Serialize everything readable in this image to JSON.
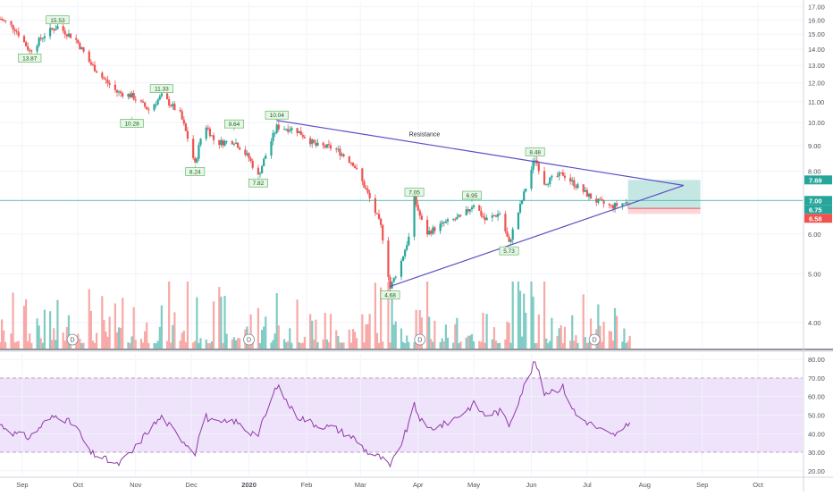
{
  "colors": {
    "up": "#26a69a",
    "down": "#ef5350",
    "vol_up": "#80cbc4",
    "vol_down": "#f7a9a7",
    "trendline": "#5b4fc4",
    "rsi_line": "#8e3aa6",
    "rsi_band": "#efe2fb",
    "grid": "#f0f3fa",
    "axis_text": "#50535e",
    "marker_fill": "#e7f6e7",
    "marker_border": "#4caf50",
    "last_price_line": "#26a69a",
    "target_zone": "#b2dfdb",
    "stop_zone": "#f8c7cc"
  },
  "annotation": {
    "resistance_label": "Resistance"
  },
  "chart_data": [
    {
      "type": "candlestick",
      "panel": "price",
      "y_scale": "log",
      "ylim": [
        3.55,
        17.4
      ],
      "y_ticks": [
        "17.00",
        "16.00",
        "15.00",
        "14.00",
        "13.00",
        "12.00",
        "11.00",
        "10.00",
        "9.00",
        "8.00",
        "7.00",
        "6.00",
        "5.00",
        "4.00"
      ],
      "x_ticks": [
        "Sep",
        "Oct",
        "Nov",
        "Dec",
        "2020",
        "Feb",
        "Mar",
        "Apr",
        "May",
        "Jun",
        "Jul",
        "Aug",
        "Sep",
        "Oct"
      ],
      "x_range": [
        "2019-08-20",
        "2020-10-25"
      ],
      "x_tick_dates": [
        "2019-09-01",
        "2019-10-01",
        "2019-11-01",
        "2019-12-01",
        "2020-01-01",
        "2020-02-01",
        "2020-03-01",
        "2020-04-01",
        "2020-05-01",
        "2020-06-01",
        "2020-07-01",
        "2020-08-01",
        "2020-09-01",
        "2020-10-01"
      ],
      "price_path": [
        [
          "2019-08-20",
          16.1
        ],
        [
          "2019-08-28",
          15.4
        ],
        [
          "2019-09-05",
          13.87
        ],
        [
          "2019-09-14",
          15.1
        ],
        [
          "2019-09-20",
          15.53
        ],
        [
          "2019-09-30",
          14.6
        ],
        [
          "2019-10-07",
          13.2
        ],
        [
          "2019-10-14",
          12.3
        ],
        [
          "2019-10-22",
          11.5
        ],
        [
          "2019-10-30",
          11.3
        ],
        [
          "2019-11-08",
          10.6
        ],
        [
          "2019-11-15",
          11.3
        ],
        [
          "2019-11-25",
          10.4
        ],
        [
          "2019-12-03",
          8.24
        ],
        [
          "2019-12-08",
          10.0
        ],
        [
          "2019-12-14",
          9.1
        ],
        [
          "2019-12-24",
          9.2
        ],
        [
          "2020-01-01",
          8.5
        ],
        [
          "2020-01-06",
          7.82
        ],
        [
          "2020-01-16",
          9.8
        ],
        [
          "2020-01-26",
          9.7
        ],
        [
          "2020-02-06",
          9.0
        ],
        [
          "2020-02-16",
          8.9
        ],
        [
          "2020-02-26",
          8.3
        ],
        [
          "2020-03-05",
          7.2
        ],
        [
          "2020-03-12",
          6.2
        ],
        [
          "2020-03-17",
          4.68
        ],
        [
          "2020-03-23",
          5.3
        ],
        [
          "2020-03-27",
          5.9
        ],
        [
          "2020-03-30",
          7.05
        ],
        [
          "2020-04-05",
          6.0
        ],
        [
          "2020-04-15",
          6.3
        ],
        [
          "2020-04-25",
          6.5
        ],
        [
          "2020-05-01",
          6.9
        ],
        [
          "2020-05-07",
          6.4
        ],
        [
          "2020-05-15",
          6.6
        ],
        [
          "2020-05-20",
          5.73
        ],
        [
          "2020-05-27",
          7.0
        ],
        [
          "2020-06-03",
          8.48
        ],
        [
          "2020-06-08",
          7.6
        ],
        [
          "2020-06-18",
          7.9
        ],
        [
          "2020-06-25",
          7.5
        ],
        [
          "2020-07-05",
          7.0
        ],
        [
          "2020-07-14",
          6.8
        ],
        [
          "2020-07-20",
          6.9
        ],
        [
          "2020-07-24",
          6.95
        ]
      ],
      "markers": [
        {
          "label": "15.53",
          "date": "2019-09-20",
          "price": 15.53,
          "pos": "above"
        },
        {
          "label": "13.87",
          "date": "2019-09-05",
          "price": 13.87,
          "pos": "below"
        },
        {
          "label": "11.33",
          "date": "2019-11-15",
          "price": 11.33,
          "pos": "above"
        },
        {
          "label": "10.28",
          "date": "2019-10-30",
          "price": 10.28,
          "pos": "below"
        },
        {
          "label": "8.24",
          "date": "2019-12-03",
          "price": 8.24,
          "pos": "below"
        },
        {
          "label": "9.64",
          "date": "2019-12-24",
          "price": 9.64,
          "pos": "above"
        },
        {
          "label": "7.82",
          "date": "2020-01-06",
          "price": 7.82,
          "pos": "below"
        },
        {
          "label": "10.04",
          "date": "2020-01-16",
          "price": 10.04,
          "pos": "above"
        },
        {
          "label": "7.05",
          "date": "2020-03-30",
          "price": 7.05,
          "pos": "above"
        },
        {
          "label": "4.68",
          "date": "2020-03-17",
          "price": 4.68,
          "pos": "below"
        },
        {
          "label": "6.95",
          "date": "2020-04-30",
          "price": 6.95,
          "pos": "above"
        },
        {
          "label": "5.73",
          "date": "2020-05-20",
          "price": 5.73,
          "pos": "below"
        },
        {
          "label": "8.48",
          "date": "2020-06-03",
          "price": 8.48,
          "pos": "above"
        }
      ],
      "trendlines": [
        {
          "name": "Resistance",
          "from": [
            "2020-01-16",
            10.1
          ],
          "to": [
            "2020-08-22",
            7.5
          ]
        },
        {
          "name": "",
          "from": [
            "2020-03-17",
            4.72
          ],
          "to": [
            "2020-08-22",
            7.5
          ]
        }
      ],
      "zones": [
        {
          "kind": "target",
          "from": "2020-07-23",
          "to": "2020-08-31",
          "low": 6.75,
          "high": 7.69
        },
        {
          "kind": "stop",
          "from": "2020-07-23",
          "to": "2020-08-31",
          "low": 6.58,
          "high": 6.75
        }
      ],
      "last_price": 7.0,
      "price_tags": [
        {
          "label": "7.69",
          "price": 7.69,
          "color": "#26a69a"
        },
        {
          "label": "7.00",
          "price": 7.0,
          "color": "#26a69a"
        },
        {
          "label": "6.75",
          "price": 6.75,
          "color": "#26a69a"
        },
        {
          "label": "6.58",
          "price": 6.58,
          "color": "#ef5350"
        }
      ],
      "event_dates": [
        "2019-09-28",
        "2020-01-01",
        "2020-04-02",
        "2020-07-05"
      ],
      "event_label": "D"
    },
    {
      "type": "line",
      "panel": "rsi",
      "ylim": [
        17,
        83
      ],
      "y_ticks": [
        "80.00",
        "70.00",
        "60.00",
        "50.00",
        "40.00",
        "30.00",
        "20.00"
      ],
      "band": [
        30,
        70
      ],
      "series": [
        {
          "values": [
            [
              "2019-08-20",
              45
            ],
            [
              "2019-08-28",
              40
            ],
            [
              "2019-09-05",
              38
            ],
            [
              "2019-09-14",
              47
            ],
            [
              "2019-09-20",
              50
            ],
            [
              "2019-09-30",
              44
            ],
            [
              "2019-10-07",
              30
            ],
            [
              "2019-10-14",
              27
            ],
            [
              "2019-10-22",
              23
            ],
            [
              "2019-10-30",
              30
            ],
            [
              "2019-11-08",
              42
            ],
            [
              "2019-11-15",
              49
            ],
            [
              "2019-11-25",
              38
            ],
            [
              "2019-12-03",
              30
            ],
            [
              "2019-12-08",
              50
            ],
            [
              "2019-12-14",
              45
            ],
            [
              "2019-12-24",
              47
            ],
            [
              "2020-01-01",
              41
            ],
            [
              "2020-01-06",
              40
            ],
            [
              "2020-01-16",
              66
            ],
            [
              "2020-01-26",
              50
            ],
            [
              "2020-02-06",
              45
            ],
            [
              "2020-02-16",
              43
            ],
            [
              "2020-02-26",
              38
            ],
            [
              "2020-03-05",
              30
            ],
            [
              "2020-03-12",
              27
            ],
            [
              "2020-03-17",
              22
            ],
            [
              "2020-03-23",
              35
            ],
            [
              "2020-03-27",
              45
            ],
            [
              "2020-03-30",
              55
            ],
            [
              "2020-04-05",
              42
            ],
            [
              "2020-04-15",
              45
            ],
            [
              "2020-04-25",
              51
            ],
            [
              "2020-05-01",
              56
            ],
            [
              "2020-05-07",
              50
            ],
            [
              "2020-05-15",
              52
            ],
            [
              "2020-05-20",
              45
            ],
            [
              "2020-05-27",
              63
            ],
            [
              "2020-06-03",
              79
            ],
            [
              "2020-06-08",
              62
            ],
            [
              "2020-06-18",
              65
            ],
            [
              "2020-06-25",
              50
            ],
            [
              "2020-07-05",
              44
            ],
            [
              "2020-07-14",
              39
            ],
            [
              "2020-07-20",
              41
            ],
            [
              "2020-07-24",
              46
            ]
          ]
        }
      ]
    }
  ]
}
